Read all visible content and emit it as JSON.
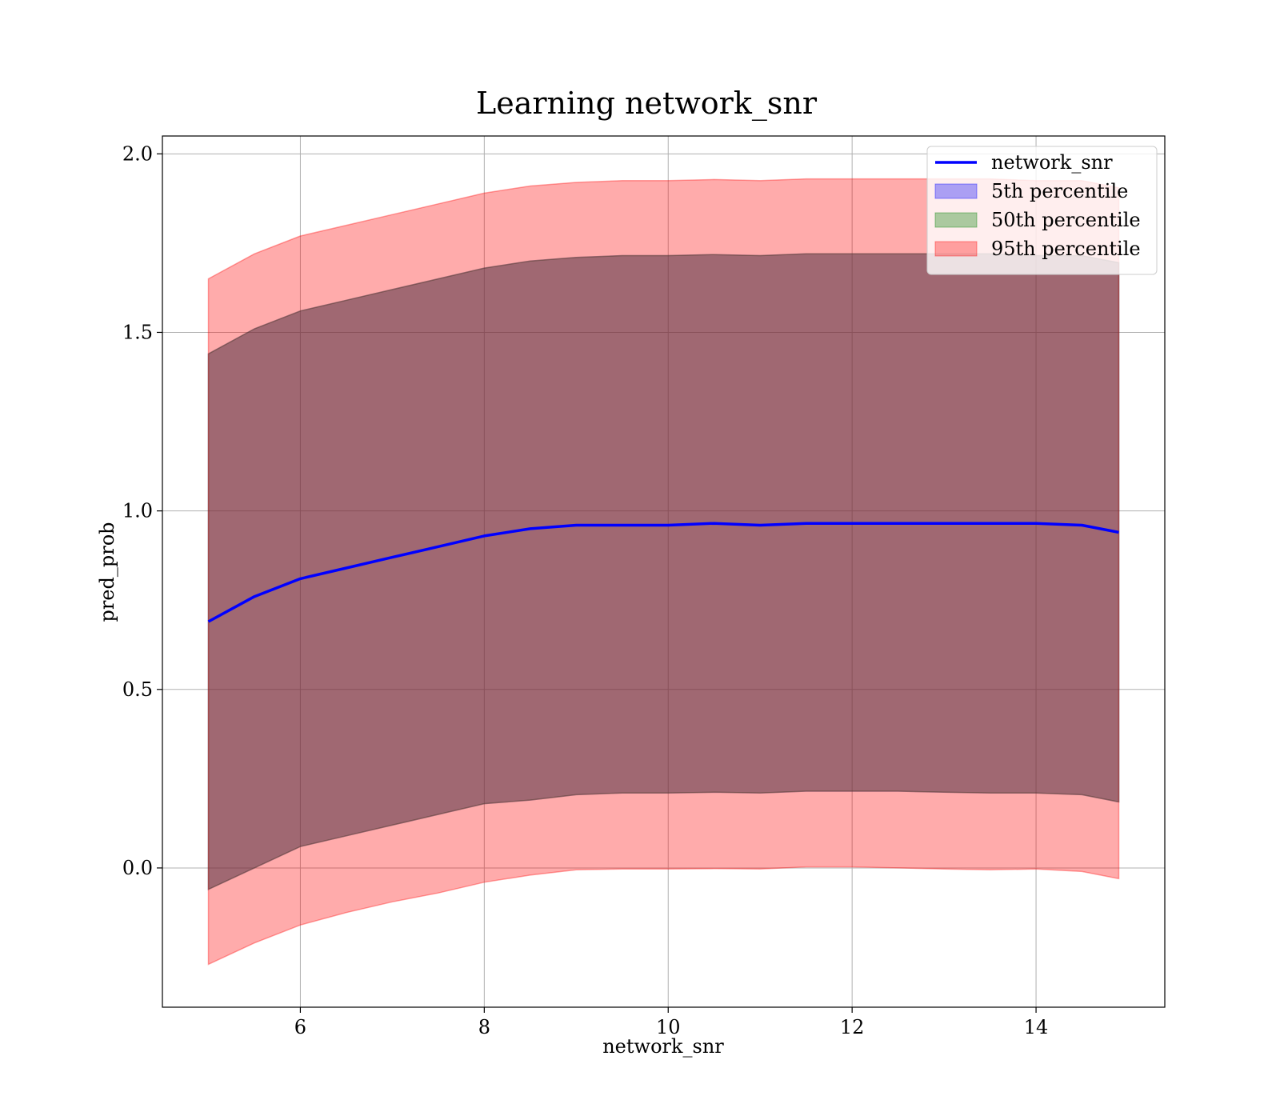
{
  "chart_data": {
    "type": "area",
    "title": "Learning network_snr",
    "xlabel": "network_snr",
    "ylabel": "pred_prob",
    "xlim": [
      4.5,
      15.4
    ],
    "ylim": [
      -0.39,
      2.05
    ],
    "grid": true,
    "legend_position": "top-right",
    "x_ticks": [
      6,
      8,
      10,
      12,
      14
    ],
    "y_ticks": [
      0.0,
      0.5,
      1.0,
      1.5,
      2.0
    ],
    "x_tick_labels": [
      "6",
      "8",
      "10",
      "12",
      "14"
    ],
    "y_tick_labels": [
      "0.0",
      "0.5",
      "1.0",
      "1.5",
      "2.0"
    ],
    "x": [
      5.0,
      5.5,
      6.0,
      6.5,
      7.0,
      7.5,
      8.0,
      8.5,
      9.0,
      9.5,
      10.0,
      10.5,
      11.0,
      11.5,
      12.0,
      12.5,
      13.0,
      13.5,
      14.0,
      14.5,
      14.9
    ],
    "series": [
      {
        "name": "network_snr",
        "kind": "line",
        "color": "#0000ff",
        "values": [
          0.69,
          0.76,
          0.81,
          0.84,
          0.87,
          0.9,
          0.93,
          0.95,
          0.96,
          0.96,
          0.96,
          0.965,
          0.96,
          0.965,
          0.965,
          0.965,
          0.965,
          0.965,
          0.965,
          0.96,
          0.94
        ]
      },
      {
        "name": "5th percentile",
        "kind": "band",
        "color": "#0000ff",
        "lower": [
          -0.06,
          0.0,
          0.06,
          0.09,
          0.12,
          0.15,
          0.18,
          0.19,
          0.205,
          0.21,
          0.21,
          0.212,
          0.21,
          0.215,
          0.215,
          0.215,
          0.212,
          0.21,
          0.21,
          0.205,
          0.185
        ],
        "upper": [
          1.44,
          1.51,
          1.56,
          1.59,
          1.62,
          1.65,
          1.68,
          1.7,
          1.71,
          1.715,
          1.715,
          1.718,
          1.715,
          1.72,
          1.72,
          1.72,
          1.72,
          1.72,
          1.715,
          1.715,
          1.695
        ]
      },
      {
        "name": "50th percentile",
        "kind": "band",
        "color": "#008000",
        "lower": [
          -0.06,
          0.0,
          0.06,
          0.09,
          0.12,
          0.15,
          0.18,
          0.19,
          0.205,
          0.21,
          0.21,
          0.212,
          0.21,
          0.215,
          0.215,
          0.215,
          0.212,
          0.21,
          0.21,
          0.205,
          0.185
        ],
        "upper": [
          1.44,
          1.51,
          1.56,
          1.59,
          1.62,
          1.65,
          1.68,
          1.7,
          1.71,
          1.715,
          1.715,
          1.718,
          1.715,
          1.72,
          1.72,
          1.72,
          1.72,
          1.72,
          1.715,
          1.715,
          1.695
        ]
      },
      {
        "name": "95th percentile",
        "kind": "band",
        "color": "#ff0000",
        "lower": [
          -0.27,
          -0.21,
          -0.16,
          -0.125,
          -0.095,
          -0.07,
          -0.04,
          -0.02,
          -0.005,
          -0.003,
          -0.003,
          -0.002,
          -0.003,
          0.003,
          0.003,
          0.0,
          -0.003,
          -0.005,
          -0.003,
          -0.01,
          -0.03
        ],
        "upper": [
          1.65,
          1.72,
          1.77,
          1.8,
          1.83,
          1.86,
          1.89,
          1.91,
          1.92,
          1.925,
          1.925,
          1.928,
          1.925,
          1.93,
          1.93,
          1.93,
          1.93,
          1.93,
          1.925,
          1.925,
          1.905
        ]
      }
    ]
  }
}
